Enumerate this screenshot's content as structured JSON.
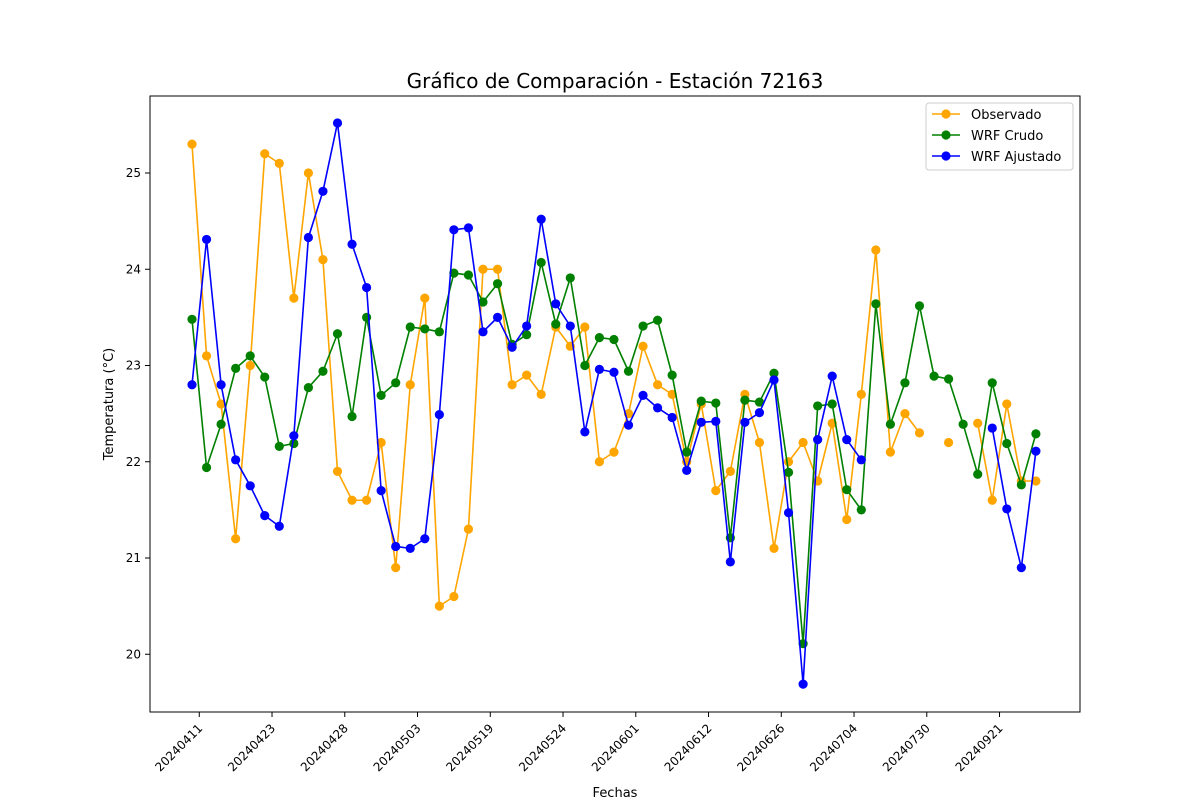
{
  "chart_data": {
    "type": "line",
    "title": "Gráfico de Comparación - Estación 72163",
    "xlabel": "Fechas",
    "ylabel": "Temperatura (°C)",
    "ylim": [
      19.4,
      25.8
    ],
    "yticks": [
      20,
      21,
      22,
      23,
      24,
      25
    ],
    "xtick_labels": [
      "20240411",
      "20240423",
      "20240428",
      "20240503",
      "20240519",
      "20240524",
      "20240601",
      "20240612",
      "20240626",
      "20240704",
      "20240730",
      "20240921"
    ],
    "xtick_positions": [
      0.5,
      5.5,
      10.5,
      15.5,
      20.5,
      25.5,
      30.5,
      35.5,
      40.5,
      45.5,
      50.5,
      55.5
    ],
    "grid": false,
    "legend_position": "top-right",
    "n_points": 60,
    "series": [
      {
        "name": "Observado",
        "color": "#ffa500",
        "values": [
          25.3,
          23.1,
          22.6,
          21.2,
          23.0,
          25.2,
          25.1,
          23.7,
          25.0,
          24.1,
          21.9,
          21.6,
          21.6,
          22.2,
          20.9,
          22.8,
          23.7,
          20.5,
          20.6,
          21.3,
          24.0,
          24.0,
          22.8,
          22.9,
          22.7,
          23.4,
          23.2,
          23.4,
          22.0,
          22.1,
          22.5,
          23.2,
          22.8,
          22.7,
          22.0,
          22.6,
          21.7,
          21.9,
          22.7,
          22.2,
          21.1,
          22.0,
          22.2,
          21.8,
          22.4,
          21.4,
          22.7,
          24.2,
          22.1,
          22.5,
          22.3,
          null,
          22.2,
          null,
          22.4,
          21.6,
          22.6,
          21.8,
          21.8,
          null
        ]
      },
      {
        "name": "WRF Crudo",
        "color": "#008000",
        "values": [
          23.48,
          21.94,
          22.39,
          22.97,
          23.1,
          22.88,
          22.16,
          22.19,
          22.77,
          22.94,
          23.33,
          22.47,
          23.5,
          22.69,
          22.82,
          23.4,
          23.38,
          23.35,
          23.96,
          23.94,
          23.66,
          23.85,
          23.22,
          23.32,
          24.07,
          23.43,
          23.91,
          23.0,
          23.29,
          23.27,
          22.94,
          23.41,
          23.47,
          22.9,
          22.1,
          22.63,
          22.61,
          21.21,
          22.64,
          22.62,
          22.92,
          21.89,
          20.11,
          22.58,
          22.6,
          21.71,
          21.5,
          23.64,
          22.39,
          22.82,
          23.62,
          22.89,
          22.86,
          22.39,
          21.87,
          22.82,
          22.19,
          21.76,
          22.29,
          null
        ]
      },
      {
        "name": "WRF Ajustado",
        "color": "#0000ff",
        "values": [
          22.8,
          24.31,
          22.8,
          22.02,
          21.75,
          21.44,
          21.33,
          22.27,
          24.33,
          24.81,
          25.52,
          24.26,
          23.81,
          21.7,
          21.12,
          21.1,
          21.2,
          22.49,
          24.41,
          24.43,
          23.35,
          23.5,
          23.19,
          23.41,
          24.52,
          23.64,
          23.41,
          22.31,
          22.96,
          22.93,
          22.38,
          22.69,
          22.56,
          22.46,
          21.91,
          22.41,
          22.42,
          20.96,
          22.41,
          22.51,
          22.85,
          21.47,
          19.69,
          22.23,
          22.89,
          22.23,
          22.02,
          null,
          null,
          null,
          null,
          null,
          null,
          null,
          null,
          22.35,
          21.51,
          20.9,
          22.11,
          null
        ]
      }
    ]
  }
}
